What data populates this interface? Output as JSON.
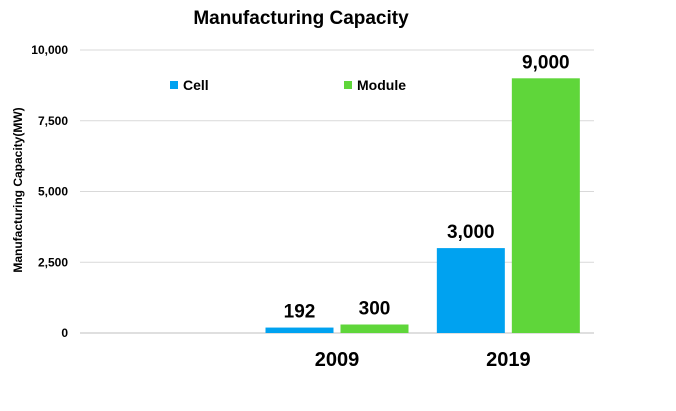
{
  "chart_data": {
    "type": "bar",
    "title": "Manufacturing Capacity",
    "ylabel": "Manufacturing Capacity(MW)",
    "xlabel": "",
    "categories": [
      "",
      "2009",
      "2019"
    ],
    "series": [
      {
        "name": "Cell",
        "color": "#00a2f0",
        "values": [
          null,
          192,
          3000
        ]
      },
      {
        "name": "Module",
        "color": "#5fd63a",
        "values": [
          null,
          300,
          9000
        ]
      }
    ],
    "data_labels": [
      [
        "",
        "192",
        "3,000"
      ],
      [
        "",
        "300",
        "9,000"
      ]
    ],
    "ylim": [
      0,
      10000
    ],
    "yticks": [
      0,
      2500,
      5000,
      7500,
      10000
    ],
    "ytick_labels": [
      "0",
      "2,500",
      "5,000",
      "7,500",
      "10,000"
    ],
    "grid": true,
    "legend_position": "top"
  }
}
